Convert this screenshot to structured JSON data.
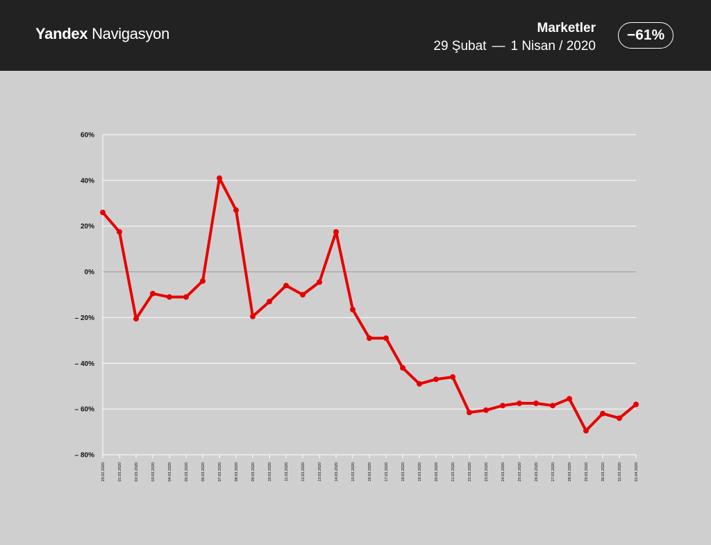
{
  "header": {
    "brand_bold": "Yandex",
    "brand_light": "Navigasyon",
    "title": "Marketler",
    "range_start": "29 Şubat",
    "range_sep": "—",
    "range_end": "1 Nisan / 2020",
    "change": "−61%"
  },
  "colors": {
    "header_bg": "#222222",
    "page_bg": "#cfcfcf",
    "line": "#e60000",
    "grid": "#ffffff",
    "zero_line": "#999999"
  },
  "chart_data": {
    "type": "line",
    "title": "",
    "xlabel": "",
    "ylabel": "",
    "ylim": [
      -80,
      60
    ],
    "yticks": [
      60,
      40,
      20,
      0,
      -20,
      -40,
      -60,
      -80
    ],
    "ytick_labels": [
      "60%",
      "40%",
      "20%",
      "0%",
      "– 20%",
      "– 40%",
      "– 60%",
      "– 80%"
    ],
    "grid": true,
    "categories": [
      "29.02.2020",
      "01.03.2020",
      "02.03.2020",
      "03.03.2020",
      "04.03.2020",
      "05.03.2020",
      "06.03.2020",
      "07.03.2020",
      "08.03.2020",
      "09.03.2020",
      "10.03.2020",
      "11.03.2020",
      "12.03.2020",
      "13.03.2020",
      "14.03.2020",
      "15.03.2020",
      "16.03.2020",
      "17.03.2020",
      "18.03.2020",
      "19.03.2020",
      "20.03.2020",
      "21.03.2020",
      "22.03.2020",
      "23.03.2020",
      "24.03.2020",
      "25.03.2020",
      "26.03.2020",
      "27.03.2020",
      "28.03.2020",
      "29.03.2020",
      "30.03.2020",
      "31.03.2020",
      "01.04.2020"
    ],
    "series": [
      {
        "values": [
          26,
          17.5,
          -20.5,
          -9.5,
          -11,
          -11,
          -4,
          41,
          27,
          -19.5,
          -13,
          -6,
          -10,
          -4.5,
          17.5,
          -16.5,
          -29,
          -29,
          -42,
          -49,
          -47,
          -46,
          -61.5,
          -60.5,
          -58.5,
          -57.5,
          -57.5,
          -58.5,
          -55.5,
          -69.5,
          -62,
          -64,
          -58
        ]
      }
    ]
  }
}
